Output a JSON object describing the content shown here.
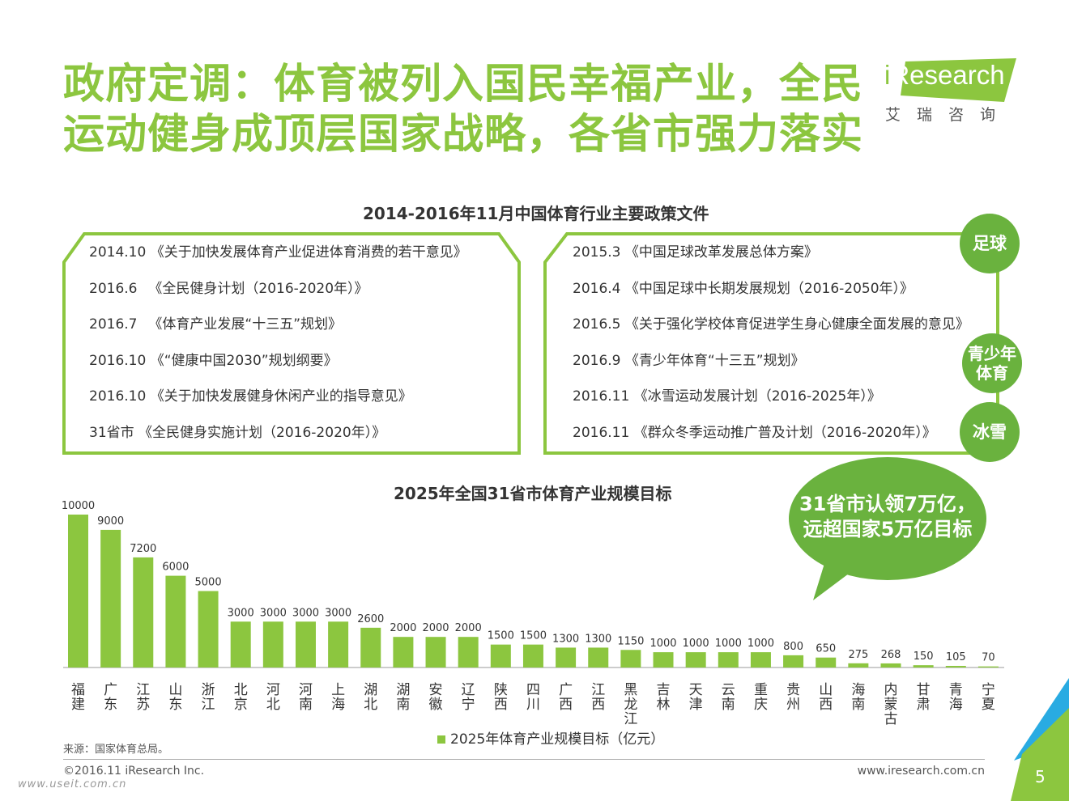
{
  "header": {
    "title_line1": "政府定调：体育被列入国民幸福产业，全民",
    "title_line2": "运动健身成顶层国家战略，各省市强力落实",
    "logo_text": "Research",
    "logo_i": "i",
    "logo_sub": "艾瑞咨询"
  },
  "policy": {
    "title": "2014-2016年11月中国体育行业主要政策文件",
    "left_items": [
      "2014.10 《关于加快发展体育产业促进体育消费的若干意见》",
      "2016.6 　《全民健身计划（2016-2020年）》",
      "2016.7 　《体育产业发展“十三五”规划》",
      "2016.10 《“健康中国2030”规划纲要》",
      "2016.10 《关于加快发展健身休闲产业的指导意见》",
      "31省市 《全民健身实施计划（2016-2020年）》"
    ],
    "right_items": [
      "2015.3 《中国足球改革发展总体方案》",
      "2016.4 《中国足球中长期发展规划（2016-2050年）》",
      "2016.5 《关于强化学校体育促进学生身心健康全面发展的意见》",
      "2016.9 《青少年体育“十三五”规划》",
      "2016.11 《冰雪运动发展计划（2016-2025年）》",
      "2016.11 《群众冬季运动推广普及计划（2016-2020年）》"
    ],
    "circles": {
      "football": "足球",
      "youth_line1": "青少年",
      "youth_line2": "体育",
      "ice": "冰雪"
    }
  },
  "callout": {
    "line1": "31省市认领7万亿，",
    "line2": "远超国家5万亿目标"
  },
  "chart_data": {
    "type": "bar",
    "title": "2025年全国31省市体育产业规模目标",
    "categories": [
      "福建",
      "广东",
      "江苏",
      "山东",
      "浙江",
      "北京",
      "河北",
      "河南",
      "上海",
      "湖北",
      "湖南",
      "安徽",
      "辽宁",
      "陕西",
      "四川",
      "广西",
      "江西",
      "黑龙江",
      "吉林",
      "天津",
      "云南",
      "重庆",
      "贵州",
      "山西",
      "海南",
      "内蒙古",
      "甘肃",
      "青海",
      "宁夏"
    ],
    "values": [
      10000,
      9000,
      7200,
      6000,
      5000,
      3000,
      3000,
      3000,
      3000,
      2600,
      2000,
      2000,
      2000,
      1500,
      1500,
      1300,
      1300,
      1150,
      1000,
      1000,
      1000,
      1000,
      800,
      650,
      275,
      268,
      150,
      105,
      70
    ],
    "series": [
      {
        "name": "2025年体育产业规模目标（亿元）"
      }
    ],
    "ylim": [
      0,
      10000
    ],
    "grid": false,
    "legend": "bottom-center",
    "bar_color": "#8cc63f"
  },
  "footer": {
    "source": "来源：国家体育总局。",
    "copyright": "©2016.11 iResearch Inc.",
    "website": "www.iresearch.com.cn",
    "watermark": "www.useit.com.cn",
    "page": "5"
  },
  "colors": {
    "accent_green": "#8cc63f",
    "circle_green": "#6ab23e",
    "corner_blue": "#29abe2"
  }
}
